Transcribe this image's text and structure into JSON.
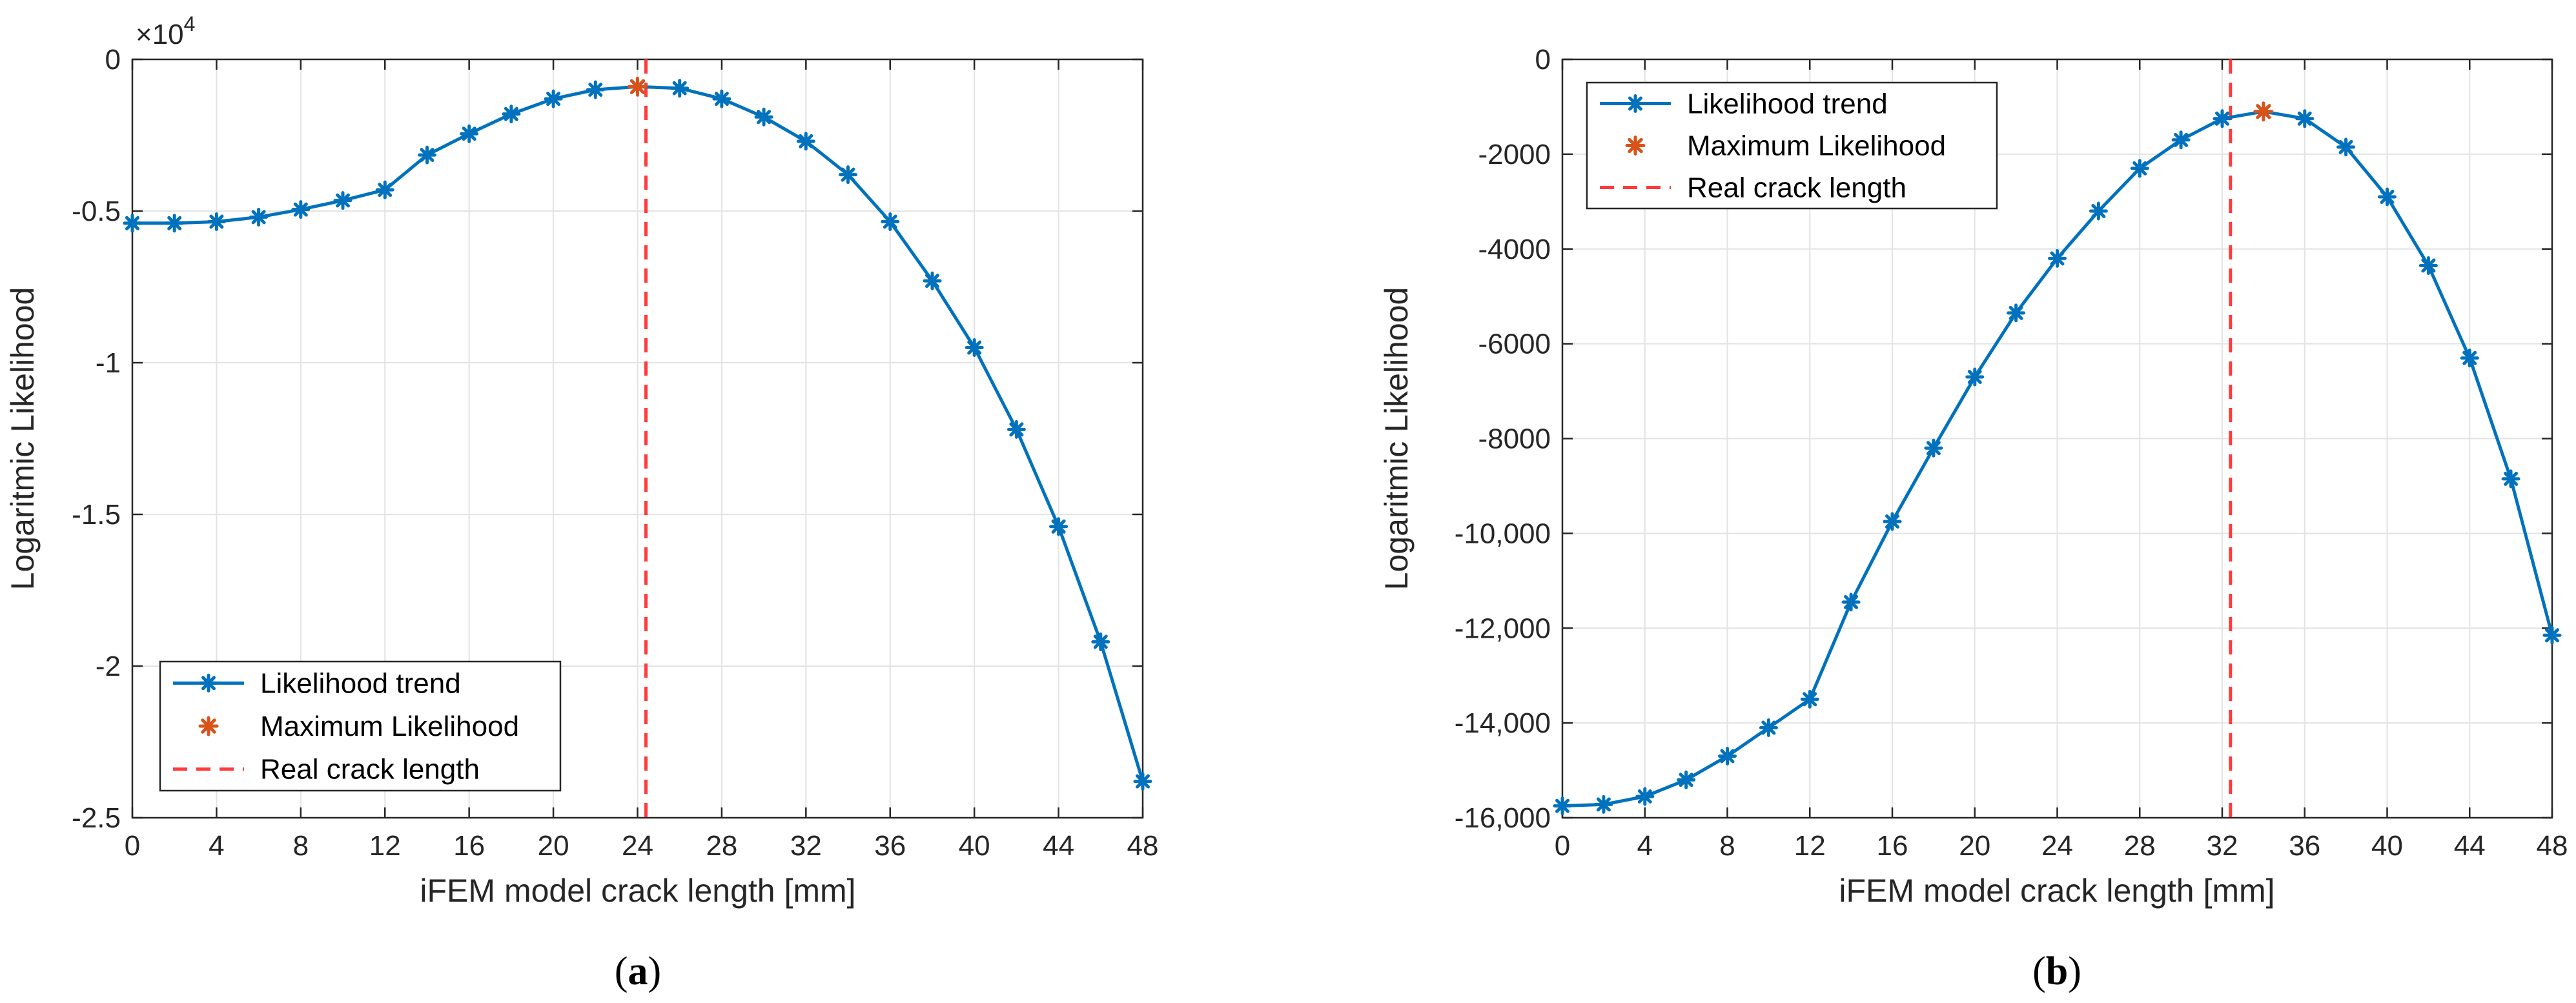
{
  "colors": {
    "trend": "#0072BD",
    "max": "#D95319",
    "real": "#FF3B3B",
    "grid": "#E3E3E3",
    "axis": "#262626"
  },
  "chart_data": [
    {
      "type": "line",
      "panel_label": "a",
      "xlabel": "iFEM model crack length [mm]",
      "ylabel": "Logaritmic Likelihood",
      "exponent_label": "×10",
      "exponent_power": "4",
      "xlim": [
        0,
        48
      ],
      "ylim": [
        -2.5,
        0
      ],
      "xticks": [
        0,
        4,
        8,
        12,
        16,
        20,
        24,
        28,
        32,
        36,
        40,
        44,
        48
      ],
      "yticks": [
        0,
        -0.5,
        -1,
        -1.5,
        -2,
        -2.5
      ],
      "ytick_labels": [
        "0",
        "-0.5",
        "-1",
        "-1.5",
        "-2",
        "-2.5"
      ],
      "grid": true,
      "legend_position": "bottom-left",
      "series": [
        {
          "name": "Likelihood trend",
          "x": [
            0,
            2,
            4,
            6,
            8,
            10,
            12,
            14,
            16,
            18,
            20,
            22,
            24,
            26,
            28,
            30,
            32,
            34,
            36,
            38,
            40,
            42,
            44,
            46,
            48
          ],
          "values": [
            -0.54,
            -0.54,
            -0.535,
            -0.52,
            -0.495,
            -0.465,
            -0.43,
            -0.315,
            -0.245,
            -0.18,
            -0.13,
            -0.1,
            -0.09,
            -0.095,
            -0.13,
            -0.19,
            -0.27,
            -0.38,
            -0.535,
            -0.73,
            -0.95,
            -1.22,
            -1.54,
            -1.92,
            -2.38
          ]
        },
        {
          "name": "Maximum Likelihood",
          "x": [
            24
          ],
          "values": [
            -0.09
          ]
        },
        {
          "name": "Real crack length",
          "x": [
            24.4
          ]
        }
      ]
    },
    {
      "type": "line",
      "panel_label": "b",
      "xlabel": "iFEM model crack length [mm]",
      "ylabel": "Logaritmic Likelihood",
      "xlim": [
        0,
        48
      ],
      "ylim": [
        -16000,
        0
      ],
      "xticks": [
        0,
        4,
        8,
        12,
        16,
        20,
        24,
        28,
        32,
        36,
        40,
        44,
        48
      ],
      "yticks": [
        0,
        -2000,
        -4000,
        -6000,
        -8000,
        -10000,
        -12000,
        -14000,
        -16000
      ],
      "ytick_labels": [
        "0",
        "-2000",
        "-4000",
        "-6000",
        "-8000",
        "-10,000",
        "-12,000",
        "-14,000",
        "-16,000"
      ],
      "grid": true,
      "legend_position": "top-left",
      "series": [
        {
          "name": "Likelihood trend",
          "x": [
            0,
            2,
            4,
            6,
            8,
            10,
            12,
            14,
            16,
            18,
            20,
            22,
            24,
            26,
            28,
            30,
            32,
            34,
            36,
            38,
            40,
            42,
            44,
            46,
            48
          ],
          "values": [
            -15750,
            -15720,
            -15550,
            -15200,
            -14700,
            -14100,
            -13500,
            -11450,
            -9750,
            -8200,
            -6700,
            -5350,
            -4200,
            -3200,
            -2300,
            -1700,
            -1250,
            -1100,
            -1250,
            -1850,
            -2900,
            -4350,
            -6300,
            -8850,
            -12150
          ]
        },
        {
          "name": "Maximum Likelihood",
          "x": [
            34
          ],
          "values": [
            -1100
          ]
        },
        {
          "name": "Real crack length",
          "x": [
            32.4
          ]
        }
      ]
    }
  ]
}
